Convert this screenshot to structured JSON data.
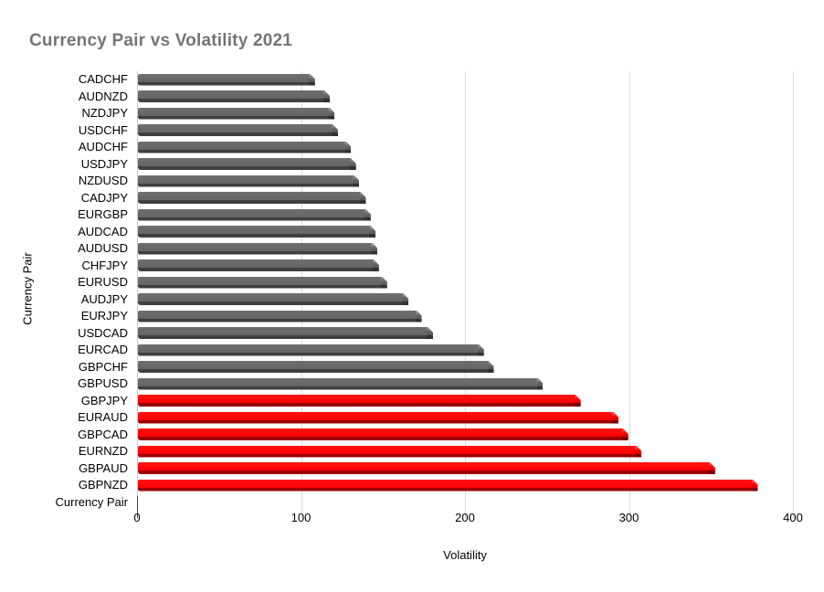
{
  "title": "Currency Pair vs Volatility 2021",
  "colors": {
    "background": "#ffffff",
    "title_text": "#757575",
    "axis_text": "#000000",
    "gridline": "#dcdcdc",
    "axis_line": "#c9c9c9",
    "axis_tick": "#424242",
    "bar_gray": "#666666",
    "bar_gray_shadow": "#3f3f3f",
    "bar_red": "#fe0000",
    "bar_red_shadow": "#9b0000"
  },
  "chart_data": {
    "type": "bar",
    "orientation": "horizontal",
    "title": "Currency Pair vs Volatility 2021",
    "xlabel": "Volatility",
    "ylabel": "Currency Pair",
    "xlim": [
      0,
      400
    ],
    "xticks": [
      0,
      100,
      200,
      300,
      400
    ],
    "grid": true,
    "legend": "none",
    "bars": [
      {
        "label": "CADCHF",
        "value": 108,
        "color": "gray"
      },
      {
        "label": "AUDNZD",
        "value": 117,
        "color": "gray"
      },
      {
        "label": "NZDJPY",
        "value": 120,
        "color": "gray"
      },
      {
        "label": "USDCHF",
        "value": 122,
        "color": "gray"
      },
      {
        "label": "AUDCHF",
        "value": 130,
        "color": "gray"
      },
      {
        "label": "USDJPY",
        "value": 133,
        "color": "gray"
      },
      {
        "label": "NZDUSD",
        "value": 135,
        "color": "gray"
      },
      {
        "label": "CADJPY",
        "value": 139,
        "color": "gray"
      },
      {
        "label": "EURGBP",
        "value": 142,
        "color": "gray"
      },
      {
        "label": "AUDCAD",
        "value": 145,
        "color": "gray"
      },
      {
        "label": "AUDUSD",
        "value": 146,
        "color": "gray"
      },
      {
        "label": "CHFJPY",
        "value": 147,
        "color": "gray"
      },
      {
        "label": "EURUSD",
        "value": 152,
        "color": "gray"
      },
      {
        "label": "AUDJPY",
        "value": 165,
        "color": "gray"
      },
      {
        "label": "EURJPY",
        "value": 173,
        "color": "gray"
      },
      {
        "label": "USDCAD",
        "value": 180,
        "color": "gray"
      },
      {
        "label": "EURCAD",
        "value": 211,
        "color": "gray"
      },
      {
        "label": "GBPCHF",
        "value": 217,
        "color": "gray"
      },
      {
        "label": "GBPUSD",
        "value": 247,
        "color": "gray"
      },
      {
        "label": "GBPJPY",
        "value": 270,
        "color": "red"
      },
      {
        "label": "EURAUD",
        "value": 293,
        "color": "red"
      },
      {
        "label": "GBPCAD",
        "value": 299,
        "color": "red"
      },
      {
        "label": "EURNZD",
        "value": 307,
        "color": "red"
      },
      {
        "label": "GBPAUD",
        "value": 352,
        "color": "red"
      },
      {
        "label": "GBPNZD",
        "value": 378,
        "color": "red"
      },
      {
        "label": "Currency Pair",
        "value": 0,
        "color": "none"
      }
    ]
  }
}
